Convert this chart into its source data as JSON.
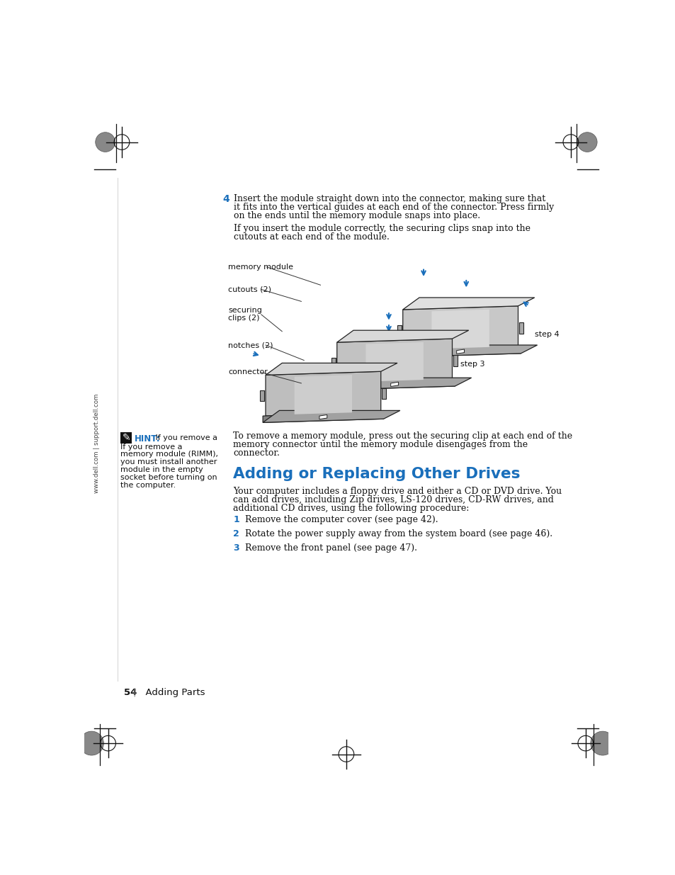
{
  "page_bg": "#ffffff",
  "text_color": "#000000",
  "dark_text": "#1a1a1a",
  "blue_color": "#1a6fbb",
  "step_num_color": "#1a6fbb",
  "page_number": "54",
  "page_label": "  Adding Parts",
  "sidebar_text": "www.dell.com | support.dell.com",
  "step4_heading": "4",
  "step4_text_line1": "Insert the module straight down into the connector, making sure that",
  "step4_text_line2": "it fits into the vertical guides at each end of the connector. Press firmly",
  "step4_text_line3": "on the ends until the memory module snaps into place.",
  "step4_subtext_line1": "If you insert the module correctly, the securing clips snap into the",
  "step4_subtext_line2": "cutouts at each end of the module.",
  "hint_title": "HINT:",
  "hint_text_lines": [
    "If you remove a",
    "memory module (RIMM),",
    "you must install another",
    "module in the empty",
    "socket before turning on",
    "the computer."
  ],
  "remove_text_line1": "To remove a memory module, press out the securing clip at each end of the",
  "remove_text_line2": "memory connector until the memory module disengages from the",
  "remove_text_line3": "connector.",
  "section_title": "Adding or Replacing Other Drives",
  "body_text_lines": [
    "Your computer includes a floppy drive and either a CD or DVD drive. You",
    "can add drives, including Zip drives, LS-120 drives, CD-RW drives, and",
    "additional CD drives, using the following procedure:"
  ],
  "numbered_steps": [
    "Remove the computer cover (see page 42).",
    "Rotate the power supply away from the system board (see page 46).",
    "Remove the front panel (see page 47)."
  ]
}
